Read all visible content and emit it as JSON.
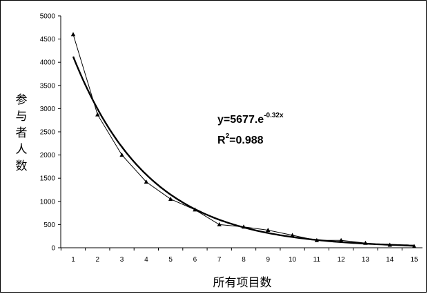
{
  "chart_data": {
    "type": "scatter",
    "xlabel": "所有项目数",
    "ylabel": "参与者人数",
    "xlim": [
      1,
      15
    ],
    "ylim": [
      0,
      5000
    ],
    "xticks": [
      1,
      2,
      3,
      4,
      5,
      6,
      7,
      8,
      9,
      10,
      11,
      12,
      13,
      14,
      15
    ],
    "yticks": [
      0,
      500,
      1000,
      1500,
      2000,
      2500,
      3000,
      3500,
      4000,
      4500,
      5000
    ],
    "grid": false,
    "series": [
      {
        "x": [
          1,
          2,
          3,
          4,
          5,
          6,
          7,
          8,
          9,
          10,
          11,
          12,
          13,
          14,
          15
        ],
        "values": [
          4600,
          2870,
          2000,
          1420,
          1050,
          820,
          500,
          450,
          380,
          270,
          160,
          160,
          100,
          60,
          30
        ],
        "style": "thin line with triangle markers"
      }
    ],
    "trendline": {
      "type": "exponential",
      "a": 5677,
      "b": -0.32,
      "style": "bold"
    },
    "annotations": {
      "equation_base": "y=5677.e",
      "equation_exponent": "-0.32x",
      "r2_prefix": "R",
      "r2_sup": "2",
      "r2_value": "=0.988"
    },
    "colors": {
      "line": "#000000",
      "marker": "#000000"
    }
  }
}
